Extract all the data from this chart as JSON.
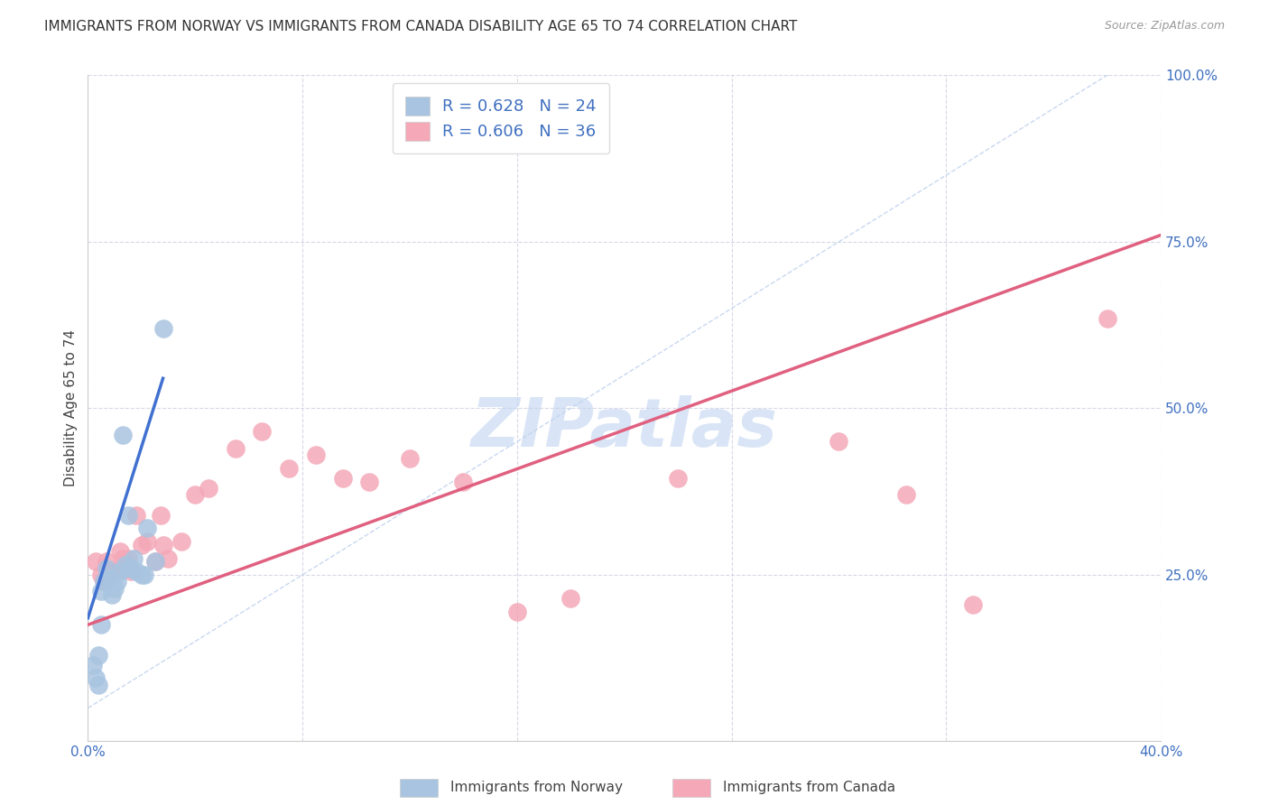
{
  "title": "IMMIGRANTS FROM NORWAY VS IMMIGRANTS FROM CANADA DISABILITY AGE 65 TO 74 CORRELATION CHART",
  "source": "Source: ZipAtlas.com",
  "xlabel": "",
  "ylabel": "Disability Age 65 to 74",
  "xlim": [
    0.0,
    0.4
  ],
  "ylim": [
    0.0,
    1.0
  ],
  "xticks": [
    0.0,
    0.08,
    0.16,
    0.24,
    0.32,
    0.4
  ],
  "xtick_labels": [
    "0.0%",
    "",
    "",
    "",
    "",
    "40.0%"
  ],
  "yticks": [
    0.0,
    0.25,
    0.5,
    0.75,
    1.0
  ],
  "ytick_labels": [
    "",
    "25.0%",
    "50.0%",
    "75.0%",
    "100.0%"
  ],
  "norway_color": "#a8c4e0",
  "canada_color": "#f4a8b8",
  "norway_line_color": "#4070d0",
  "canada_line_color": "#e06080",
  "ref_line_color": "#c8d8f0",
  "watermark": "ZIPatlas",
  "watermark_color": "#c0d4f0",
  "legend_R_norway": "R = 0.628",
  "legend_N_norway": "N = 24",
  "legend_R_canada": "R = 0.606",
  "legend_N_canada": "N = 36",
  "norway_x": [
    0.002,
    0.003,
    0.004,
    0.004,
    0.005,
    0.005,
    0.006,
    0.007,
    0.008,
    0.009,
    0.01,
    0.011,
    0.012,
    0.013,
    0.014,
    0.015,
    0.016,
    0.017,
    0.018,
    0.02,
    0.021,
    0.022,
    0.025,
    0.028
  ],
  "norway_y": [
    0.115,
    0.095,
    0.13,
    0.085,
    0.175,
    0.225,
    0.24,
    0.26,
    0.245,
    0.22,
    0.23,
    0.24,
    0.255,
    0.46,
    0.265,
    0.34,
    0.26,
    0.275,
    0.255,
    0.25,
    0.25,
    0.32,
    0.27,
    0.62
  ],
  "canada_x": [
    0.003,
    0.005,
    0.006,
    0.007,
    0.008,
    0.01,
    0.012,
    0.013,
    0.014,
    0.015,
    0.016,
    0.018,
    0.02,
    0.022,
    0.025,
    0.027,
    0.028,
    0.03,
    0.035,
    0.04,
    0.045,
    0.055,
    0.065,
    0.075,
    0.085,
    0.095,
    0.105,
    0.12,
    0.14,
    0.16,
    0.18,
    0.22,
    0.28,
    0.305,
    0.33,
    0.38
  ],
  "canada_y": [
    0.27,
    0.25,
    0.24,
    0.27,
    0.255,
    0.255,
    0.285,
    0.275,
    0.26,
    0.275,
    0.255,
    0.34,
    0.295,
    0.3,
    0.27,
    0.34,
    0.295,
    0.275,
    0.3,
    0.37,
    0.38,
    0.44,
    0.465,
    0.41,
    0.43,
    0.395,
    0.39,
    0.425,
    0.39,
    0.195,
    0.215,
    0.395,
    0.45,
    0.37,
    0.205,
    0.635
  ],
  "norway_line_x0": 0.0,
  "norway_line_y0": 0.185,
  "norway_line_x1": 0.028,
  "norway_line_y1": 0.545,
  "canada_line_x0": 0.0,
  "canada_line_y0": 0.175,
  "canada_line_x1": 0.4,
  "canada_line_y1": 0.76,
  "background_color": "#ffffff",
  "grid_color": "#d8d8e8",
  "figsize": [
    14.06,
    8.92
  ],
  "dpi": 100
}
